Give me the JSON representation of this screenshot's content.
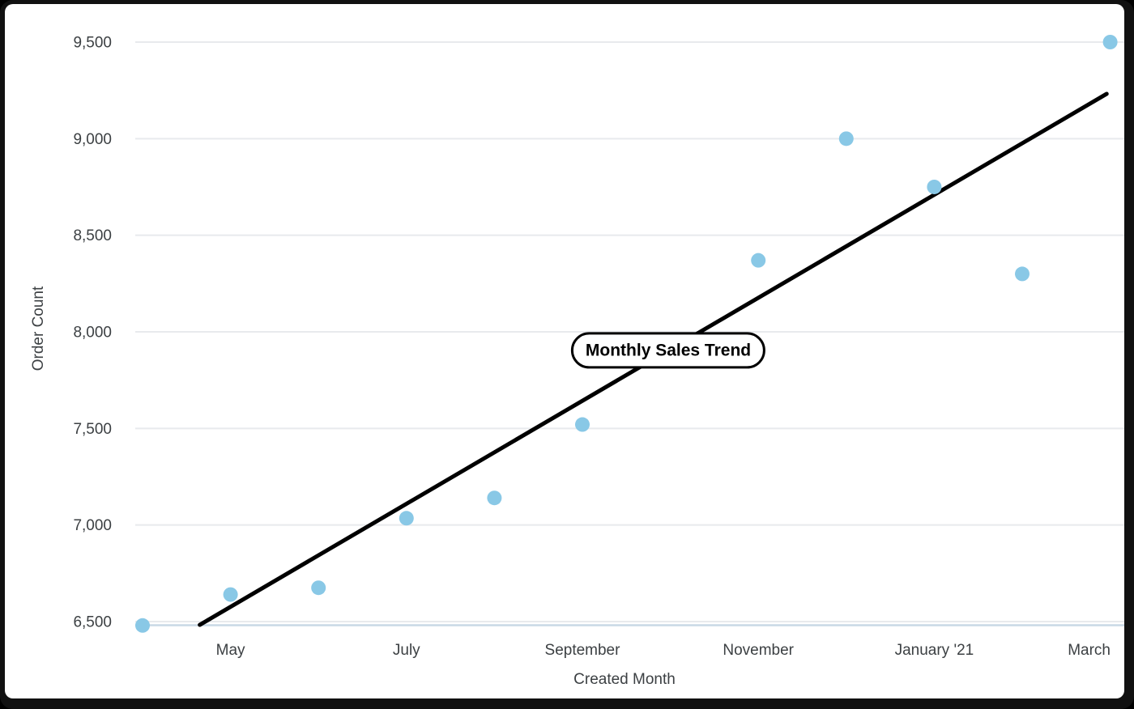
{
  "chart": {
    "title_pill_label": "Monthly Sales Trend",
    "y_axis_title": "Order Count",
    "x_axis_title": "Created Month"
  },
  "chart_data": {
    "type": "scatter",
    "title": "Monthly Sales Trend",
    "xlabel": "Created Month",
    "ylabel": "Order Count",
    "x_unit": "month",
    "points": [
      {
        "month": "April 2020",
        "month_index": 0,
        "order_count": 6480
      },
      {
        "month": "May 2020",
        "month_index": 1,
        "order_count": 6640
      },
      {
        "month": "June 2020",
        "month_index": 2,
        "order_count": 6675
      },
      {
        "month": "July 2020",
        "month_index": 3,
        "order_count": 7035
      },
      {
        "month": "August 2020",
        "month_index": 4,
        "order_count": 7140
      },
      {
        "month": "September 2020",
        "month_index": 5,
        "order_count": 7520
      },
      {
        "month": "November 2020",
        "month_index": 7,
        "order_count": 8370
      },
      {
        "month": "December 2020",
        "month_index": 8,
        "order_count": 9000
      },
      {
        "month": "January 2021",
        "month_index": 9,
        "order_count": 8750
      },
      {
        "month": "February 2021",
        "month_index": 10,
        "order_count": 8300
      },
      {
        "month": "March 2021",
        "month_index": 11,
        "order_count": 9500
      }
    ],
    "trendline": {
      "start": {
        "month_index": 0.65,
        "value": 6483
      },
      "end": {
        "month_index": 10.96,
        "value": 9232
      }
    },
    "x_tick_labels": [
      {
        "label": "May",
        "month_index": 1
      },
      {
        "label": "July",
        "month_index": 3
      },
      {
        "label": "September",
        "month_index": 5
      },
      {
        "label": "November",
        "month_index": 7
      },
      {
        "label": "January '21",
        "month_index": 9
      },
      {
        "label": "March",
        "month_index": 11
      }
    ],
    "y_ticks": [
      {
        "label": "6,500",
        "value": 6500
      },
      {
        "label": "7,000",
        "value": 7000
      },
      {
        "label": "7,500",
        "value": 7500
      },
      {
        "label": "8,000",
        "value": 8000
      },
      {
        "label": "8,500",
        "value": 8500
      },
      {
        "label": "9,000",
        "value": 9000
      },
      {
        "label": "9,500",
        "value": 9500
      }
    ],
    "ylim": [
      6483,
      9500
    ],
    "grid": "horizontal",
    "legend": "none",
    "notes": "October 2020 point is obscured by the 'Monthly Sales Trend' title pill; trend line is clipped at the bottom axis baseline",
    "colors": {
      "point": "#89c8e6",
      "trendline": "#000000",
      "gridline": "#e8eaed",
      "baseline": "#c9d9e5",
      "tick_text": "#3c4043",
      "frame": "#111111",
      "background": "#ffffff"
    }
  }
}
